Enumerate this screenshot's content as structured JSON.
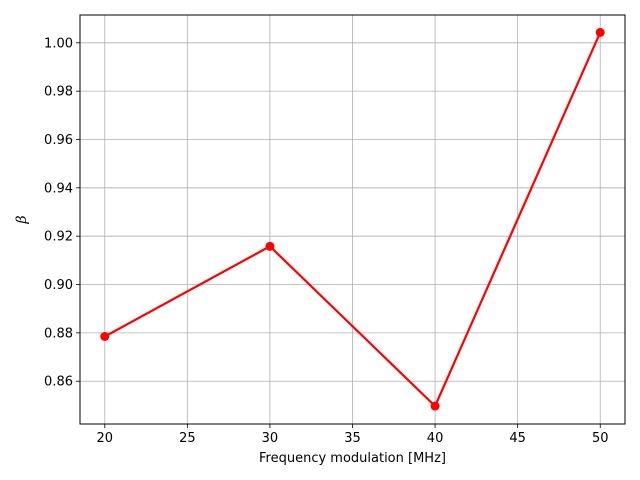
{
  "chart_data": {
    "type": "line",
    "title": "",
    "xlabel": "Frequency modulation [MHz]",
    "ylabel": "β",
    "grid": true,
    "xlim": [
      18.5,
      51.5
    ],
    "ylim": [
      0.8423,
      1.0115
    ],
    "xticks": [
      20,
      25,
      30,
      35,
      40,
      45,
      50
    ],
    "yticks": [
      0.86,
      0.88,
      0.9,
      0.92,
      0.94,
      0.96,
      0.98,
      1.0
    ],
    "series": [
      {
        "color": "#ff0000",
        "marker": "circle",
        "x": [
          20,
          30,
          40,
          50
        ],
        "y": [
          0.8785,
          0.9158,
          0.8497,
          1.0043
        ]
      }
    ]
  }
}
